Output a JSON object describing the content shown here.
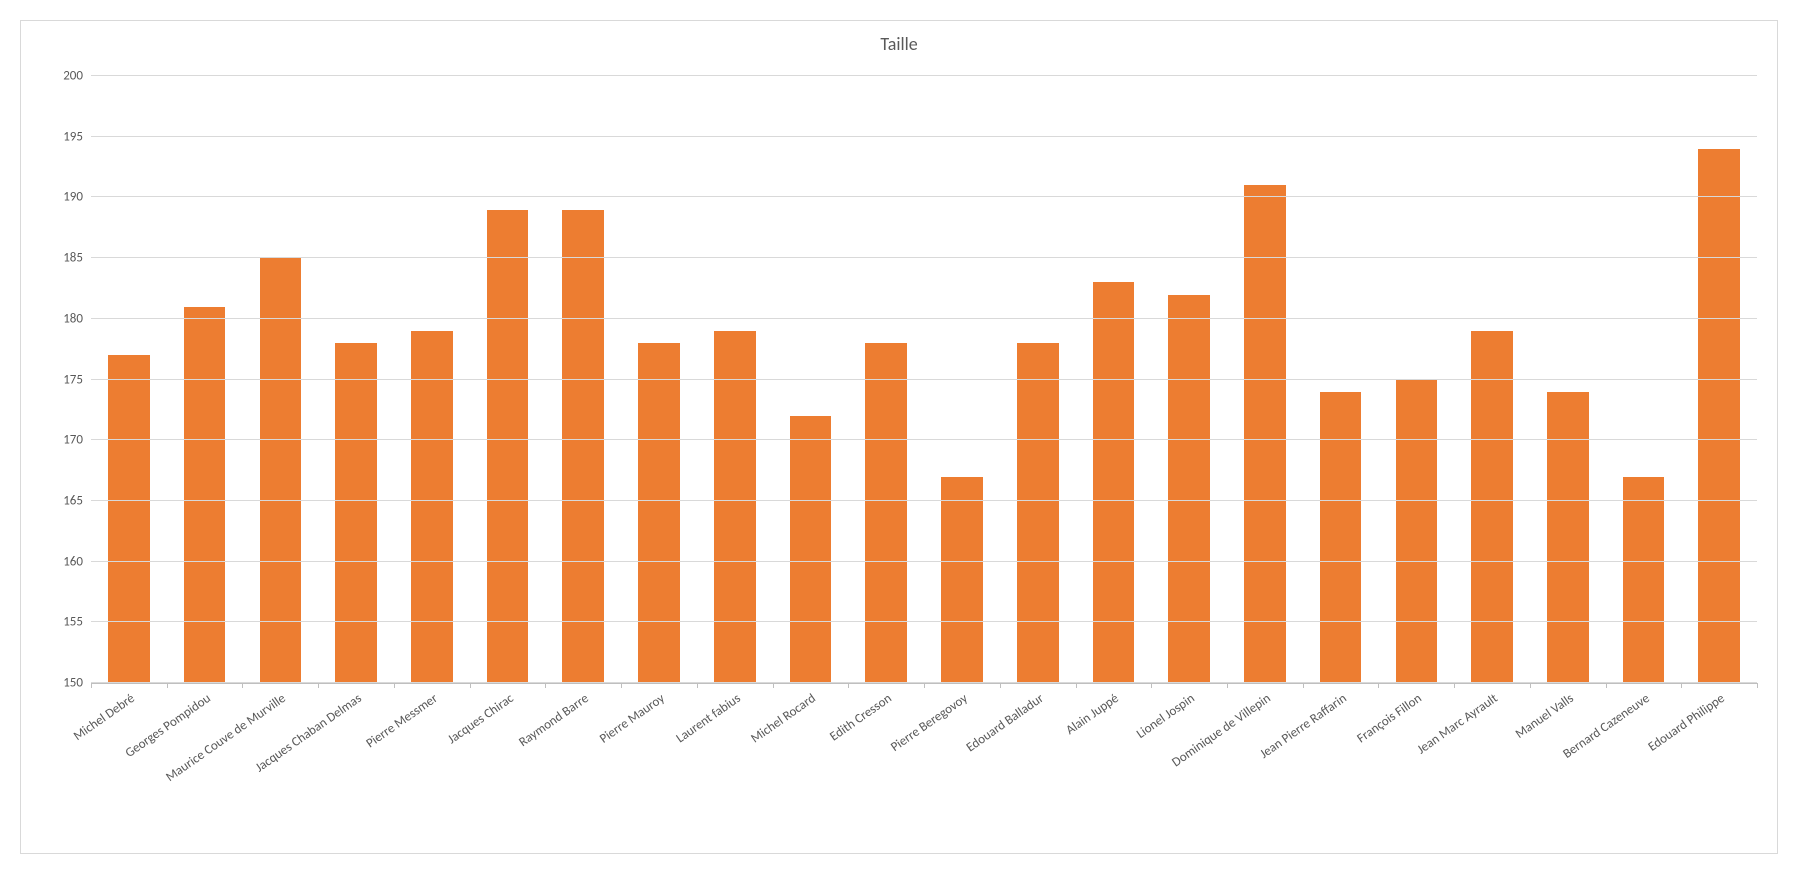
{
  "chart": {
    "type": "bar",
    "title": "Taille",
    "title_fontsize": 18,
    "title_color": "#595959",
    "categories": [
      "Michel Debré",
      "Georges Pompidou",
      "Maurice Couve de Murville",
      "Jacques Chaban Delmas",
      "Pierre Messmer",
      "Jacques Chirac",
      "Raymond Barre",
      "Pierre Mauroy",
      "Laurent fabius",
      "Michel Rocard",
      "Edith Cresson",
      "Pierre Beregovoy",
      "Edouard Balladur",
      "Alain Juppé",
      "Lionel Jospin",
      "Dominique de Villepin",
      "Jean Pierre Raffarin",
      "François Fillon",
      "Jean Marc Ayrault",
      "Manuel Valls",
      "Bernard Cazeneuve",
      "Edouard Philippe"
    ],
    "values": [
      177,
      181,
      185,
      178,
      179,
      189,
      189,
      178,
      179,
      172,
      178,
      167,
      178,
      183,
      182,
      191,
      174,
      175,
      179,
      174,
      167,
      194
    ],
    "bar_color": "#ed7d31",
    "bar_width": 0.55,
    "ylim": [
      150,
      200
    ],
    "ytick_step": 5,
    "yticks": [
      150,
      155,
      160,
      165,
      170,
      175,
      180,
      185,
      190,
      195,
      200
    ],
    "label_fontsize": 13,
    "label_color": "#595959",
    "background_color": "#ffffff",
    "grid_color": "#d9d9d9",
    "axis_color": "#bfbfbf",
    "border_color": "#d9d9d9",
    "x_label_rotation": -35
  }
}
